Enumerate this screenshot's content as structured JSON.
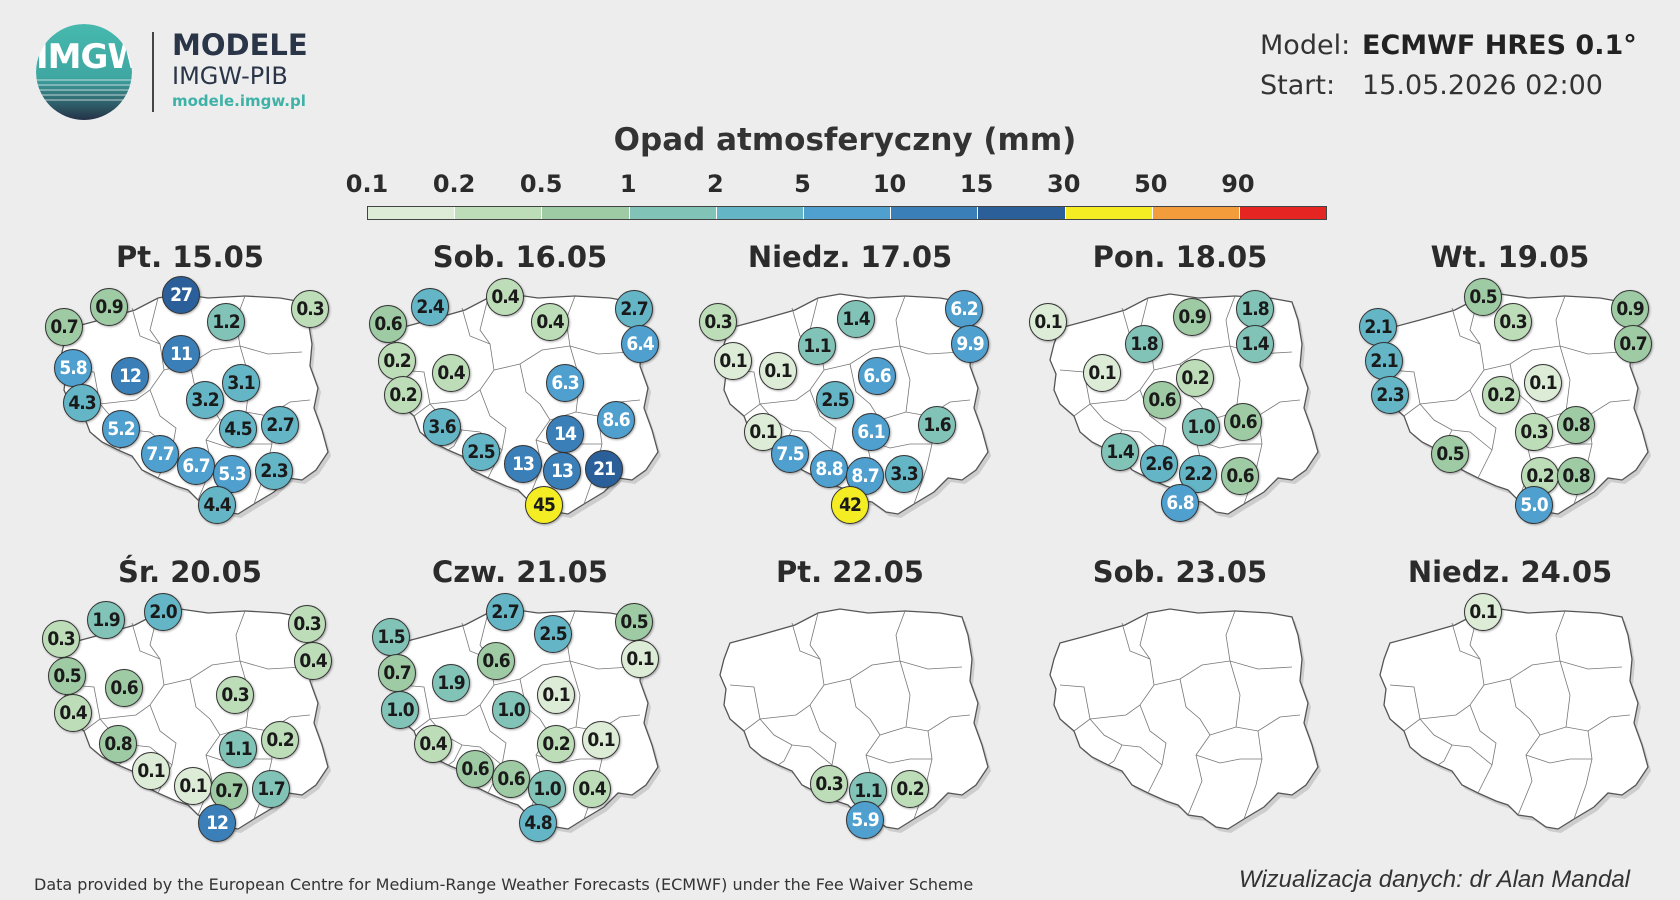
{
  "brand": {
    "logo_text": "IMGW",
    "line1": "MODELE",
    "line2": "IMGW-PIB",
    "url": "modele.imgw.pl",
    "colors": {
      "dark": "#2b3548",
      "teal": "#3fb2a8"
    }
  },
  "model": {
    "label": "Model:",
    "value": "ECMWF HRES 0.1°"
  },
  "start": {
    "label": "Start:",
    "value": "15.05.2026 02:00"
  },
  "title": "Opad atmosferyczny (mm)",
  "legend": {
    "ticks": [
      "0.1",
      "0.2",
      "0.5",
      "1",
      "2",
      "5",
      "10",
      "15",
      "30",
      "50",
      "90"
    ],
    "colors": [
      "#ddecd7",
      "#bddcb8",
      "#9ecba4",
      "#82c3b8",
      "#64b5c6",
      "#4f9fcf",
      "#3b7fb8",
      "#2a5f99",
      "#f5ed23",
      "#f39c3b",
      "#e52522"
    ]
  },
  "bubble_scale": [
    {
      "min": 0,
      "max": 0.2,
      "color": "#ddecd7"
    },
    {
      "min": 0.2,
      "max": 0.5,
      "color": "#bddcb8"
    },
    {
      "min": 0.5,
      "max": 1,
      "color": "#9ecba4"
    },
    {
      "min": 1,
      "max": 2,
      "color": "#82c3b8"
    },
    {
      "min": 2,
      "max": 5,
      "color": "#64b5c6"
    },
    {
      "min": 5,
      "max": 10,
      "color": "#4f9fcf"
    },
    {
      "min": 10,
      "max": 15,
      "color": "#3b7fb8"
    },
    {
      "min": 15,
      "max": 30,
      "color": "#2a5f99"
    },
    {
      "min": 30,
      "max": 50,
      "color": "#f5ed23"
    },
    {
      "min": 50,
      "max": 90,
      "color": "#f39c3b"
    },
    {
      "min": 90,
      "max": 9999,
      "color": "#e52522"
    }
  ],
  "days": [
    {
      "title": "Pt. 15.05",
      "values": [
        {
          "v": "0.7",
          "x": 0.08,
          "y": 0.19
        },
        {
          "v": "0.9",
          "x": 0.23,
          "y": 0.11
        },
        {
          "v": "27",
          "x": 0.47,
          "y": 0.06
        },
        {
          "v": "1.2",
          "x": 0.62,
          "y": 0.17
        },
        {
          "v": "0.3",
          "x": 0.9,
          "y": 0.12
        },
        {
          "v": "11",
          "x": 0.47,
          "y": 0.3
        },
        {
          "v": "5.8",
          "x": 0.11,
          "y": 0.36
        },
        {
          "v": "12",
          "x": 0.3,
          "y": 0.39
        },
        {
          "v": "3.1",
          "x": 0.67,
          "y": 0.42
        },
        {
          "v": "3.2",
          "x": 0.55,
          "y": 0.49
        },
        {
          "v": "4.3",
          "x": 0.14,
          "y": 0.5
        },
        {
          "v": "5.2",
          "x": 0.27,
          "y": 0.61
        },
        {
          "v": "4.5",
          "x": 0.66,
          "y": 0.61
        },
        {
          "v": "2.7",
          "x": 0.8,
          "y": 0.59
        },
        {
          "v": "7.7",
          "x": 0.4,
          "y": 0.71
        },
        {
          "v": "6.7",
          "x": 0.52,
          "y": 0.76
        },
        {
          "v": "5.3",
          "x": 0.64,
          "y": 0.79
        },
        {
          "v": "2.3",
          "x": 0.78,
          "y": 0.78
        },
        {
          "v": "4.4",
          "x": 0.59,
          "y": 0.92
        }
      ]
    },
    {
      "title": "Sob. 16.05",
      "values": [
        {
          "v": "0.6",
          "x": 0.06,
          "y": 0.18
        },
        {
          "v": "2.4",
          "x": 0.2,
          "y": 0.11
        },
        {
          "v": "0.4",
          "x": 0.45,
          "y": 0.07
        },
        {
          "v": "0.4",
          "x": 0.6,
          "y": 0.17
        },
        {
          "v": "2.7",
          "x": 0.88,
          "y": 0.12
        },
        {
          "v": "6.4",
          "x": 0.9,
          "y": 0.26
        },
        {
          "v": "0.2",
          "x": 0.09,
          "y": 0.33
        },
        {
          "v": "0.4",
          "x": 0.27,
          "y": 0.38
        },
        {
          "v": "6.3",
          "x": 0.65,
          "y": 0.42
        },
        {
          "v": "0.2",
          "x": 0.11,
          "y": 0.47
        },
        {
          "v": "3.6",
          "x": 0.24,
          "y": 0.6
        },
        {
          "v": "14",
          "x": 0.65,
          "y": 0.63
        },
        {
          "v": "8.6",
          "x": 0.82,
          "y": 0.57
        },
        {
          "v": "2.5",
          "x": 0.37,
          "y": 0.7
        },
        {
          "v": "13",
          "x": 0.51,
          "y": 0.75
        },
        {
          "v": "13",
          "x": 0.64,
          "y": 0.78
        },
        {
          "v": "21",
          "x": 0.78,
          "y": 0.77
        },
        {
          "v": "45",
          "x": 0.58,
          "y": 0.92
        }
      ]
    },
    {
      "title": "Niedz. 17.05",
      "values": [
        {
          "v": "0.3",
          "x": 0.06,
          "y": 0.17
        },
        {
          "v": "1.4",
          "x": 0.52,
          "y": 0.16
        },
        {
          "v": "6.2",
          "x": 0.88,
          "y": 0.12
        },
        {
          "v": "9.9",
          "x": 0.9,
          "y": 0.26
        },
        {
          "v": "0.1",
          "x": 0.11,
          "y": 0.33
        },
        {
          "v": "1.1",
          "x": 0.39,
          "y": 0.27
        },
        {
          "v": "0.1",
          "x": 0.26,
          "y": 0.37
        },
        {
          "v": "6.6",
          "x": 0.59,
          "y": 0.39
        },
        {
          "v": "2.5",
          "x": 0.45,
          "y": 0.49
        },
        {
          "v": "1.6",
          "x": 0.79,
          "y": 0.59
        },
        {
          "v": "0.1",
          "x": 0.21,
          "y": 0.62
        },
        {
          "v": "6.1",
          "x": 0.57,
          "y": 0.62
        },
        {
          "v": "7.5",
          "x": 0.3,
          "y": 0.71
        },
        {
          "v": "8.8",
          "x": 0.43,
          "y": 0.77
        },
        {
          "v": "8.7",
          "x": 0.55,
          "y": 0.8
        },
        {
          "v": "3.3",
          "x": 0.68,
          "y": 0.79
        },
        {
          "v": "42",
          "x": 0.5,
          "y": 0.92
        }
      ]
    },
    {
      "title": "Pon. 18.05",
      "values": [
        {
          "v": "0.1",
          "x": 0.06,
          "y": 0.17
        },
        {
          "v": "0.9",
          "x": 0.54,
          "y": 0.15
        },
        {
          "v": "1.8",
          "x": 0.75,
          "y": 0.12
        },
        {
          "v": "1.8",
          "x": 0.38,
          "y": 0.26
        },
        {
          "v": "1.4",
          "x": 0.75,
          "y": 0.26
        },
        {
          "v": "0.1",
          "x": 0.24,
          "y": 0.38
        },
        {
          "v": "0.2",
          "x": 0.55,
          "y": 0.4
        },
        {
          "v": "0.6",
          "x": 0.44,
          "y": 0.49
        },
        {
          "v": "1.0",
          "x": 0.57,
          "y": 0.6
        },
        {
          "v": "0.6",
          "x": 0.71,
          "y": 0.58
        },
        {
          "v": "1.4",
          "x": 0.3,
          "y": 0.7
        },
        {
          "v": "2.6",
          "x": 0.43,
          "y": 0.75
        },
        {
          "v": "2.2",
          "x": 0.56,
          "y": 0.79
        },
        {
          "v": "0.6",
          "x": 0.7,
          "y": 0.8
        },
        {
          "v": "6.8",
          "x": 0.5,
          "y": 0.91
        }
      ]
    },
    {
      "title": "Wt. 19.05",
      "values": [
        {
          "v": "0.5",
          "x": 0.41,
          "y": 0.07
        },
        {
          "v": "0.9",
          "x": 0.9,
          "y": 0.12
        },
        {
          "v": "2.1",
          "x": 0.06,
          "y": 0.19
        },
        {
          "v": "0.3",
          "x": 0.51,
          "y": 0.17
        },
        {
          "v": "0.7",
          "x": 0.91,
          "y": 0.26
        },
        {
          "v": "2.1",
          "x": 0.08,
          "y": 0.33
        },
        {
          "v": "0.1",
          "x": 0.61,
          "y": 0.42
        },
        {
          "v": "2.3",
          "x": 0.1,
          "y": 0.47
        },
        {
          "v": "0.2",
          "x": 0.47,
          "y": 0.47
        },
        {
          "v": "0.3",
          "x": 0.58,
          "y": 0.62
        },
        {
          "v": "0.8",
          "x": 0.72,
          "y": 0.59
        },
        {
          "v": "0.5",
          "x": 0.3,
          "y": 0.71
        },
        {
          "v": "0.2",
          "x": 0.6,
          "y": 0.8
        },
        {
          "v": "0.8",
          "x": 0.72,
          "y": 0.8
        },
        {
          "v": "5.0",
          "x": 0.58,
          "y": 0.92
        }
      ]
    },
    {
      "title": "Śr. 20.05",
      "values": [
        {
          "v": "0.3",
          "x": 0.07,
          "y": 0.18
        },
        {
          "v": "1.9",
          "x": 0.22,
          "y": 0.1
        },
        {
          "v": "2.0",
          "x": 0.41,
          "y": 0.07
        },
        {
          "v": "0.3",
          "x": 0.89,
          "y": 0.12
        },
        {
          "v": "0.4",
          "x": 0.91,
          "y": 0.27
        },
        {
          "v": "0.5",
          "x": 0.09,
          "y": 0.33
        },
        {
          "v": "0.6",
          "x": 0.28,
          "y": 0.38
        },
        {
          "v": "0.3",
          "x": 0.65,
          "y": 0.41
        },
        {
          "v": "0.4",
          "x": 0.11,
          "y": 0.48
        },
        {
          "v": "0.8",
          "x": 0.26,
          "y": 0.61
        },
        {
          "v": "1.1",
          "x": 0.66,
          "y": 0.63
        },
        {
          "v": "0.2",
          "x": 0.8,
          "y": 0.59
        },
        {
          "v": "0.1",
          "x": 0.37,
          "y": 0.72
        },
        {
          "v": "0.1",
          "x": 0.51,
          "y": 0.78
        },
        {
          "v": "0.7",
          "x": 0.63,
          "y": 0.8
        },
        {
          "v": "1.7",
          "x": 0.77,
          "y": 0.79
        },
        {
          "v": "12",
          "x": 0.59,
          "y": 0.93
        }
      ]
    },
    {
      "title": "Czw. 21.05",
      "values": [
        {
          "v": "1.5",
          "x": 0.07,
          "y": 0.17
        },
        {
          "v": "2.7",
          "x": 0.45,
          "y": 0.07
        },
        {
          "v": "0.5",
          "x": 0.88,
          "y": 0.11
        },
        {
          "v": "2.5",
          "x": 0.61,
          "y": 0.16
        },
        {
          "v": "0.6",
          "x": 0.42,
          "y": 0.27
        },
        {
          "v": "0.1",
          "x": 0.9,
          "y": 0.26
        },
        {
          "v": "0.7",
          "x": 0.09,
          "y": 0.32
        },
        {
          "v": "1.9",
          "x": 0.27,
          "y": 0.36
        },
        {
          "v": "0.1",
          "x": 0.62,
          "y": 0.41
        },
        {
          "v": "1.0",
          "x": 0.1,
          "y": 0.47
        },
        {
          "v": "1.0",
          "x": 0.47,
          "y": 0.47
        },
        {
          "v": "0.4",
          "x": 0.21,
          "y": 0.61
        },
        {
          "v": "0.2",
          "x": 0.62,
          "y": 0.61
        },
        {
          "v": "0.1",
          "x": 0.77,
          "y": 0.59
        },
        {
          "v": "0.6",
          "x": 0.35,
          "y": 0.71
        },
        {
          "v": "0.6",
          "x": 0.47,
          "y": 0.75
        },
        {
          "v": "1.0",
          "x": 0.59,
          "y": 0.79
        },
        {
          "v": "0.4",
          "x": 0.74,
          "y": 0.79
        },
        {
          "v": "4.8",
          "x": 0.56,
          "y": 0.93
        }
      ]
    },
    {
      "title": "Pt. 22.05",
      "values": [
        {
          "v": "0.3",
          "x": 0.43,
          "y": 0.77
        },
        {
          "v": "1.1",
          "x": 0.56,
          "y": 0.8
        },
        {
          "v": "0.2",
          "x": 0.7,
          "y": 0.79
        },
        {
          "v": "5.9",
          "x": 0.55,
          "y": 0.92
        }
      ]
    },
    {
      "title": "Sob. 23.05",
      "values": []
    },
    {
      "title": "Niedz. 24.05",
      "values": [
        {
          "v": "0.1",
          "x": 0.41,
          "y": 0.07
        }
      ]
    }
  ],
  "footer": {
    "left": "Data provided by the European Centre for Medium-Range Weather Forecasts (ECMWF) under the Fee Waiver Scheme",
    "right": "Wizualizacja danych: dr Alan Mandal"
  }
}
